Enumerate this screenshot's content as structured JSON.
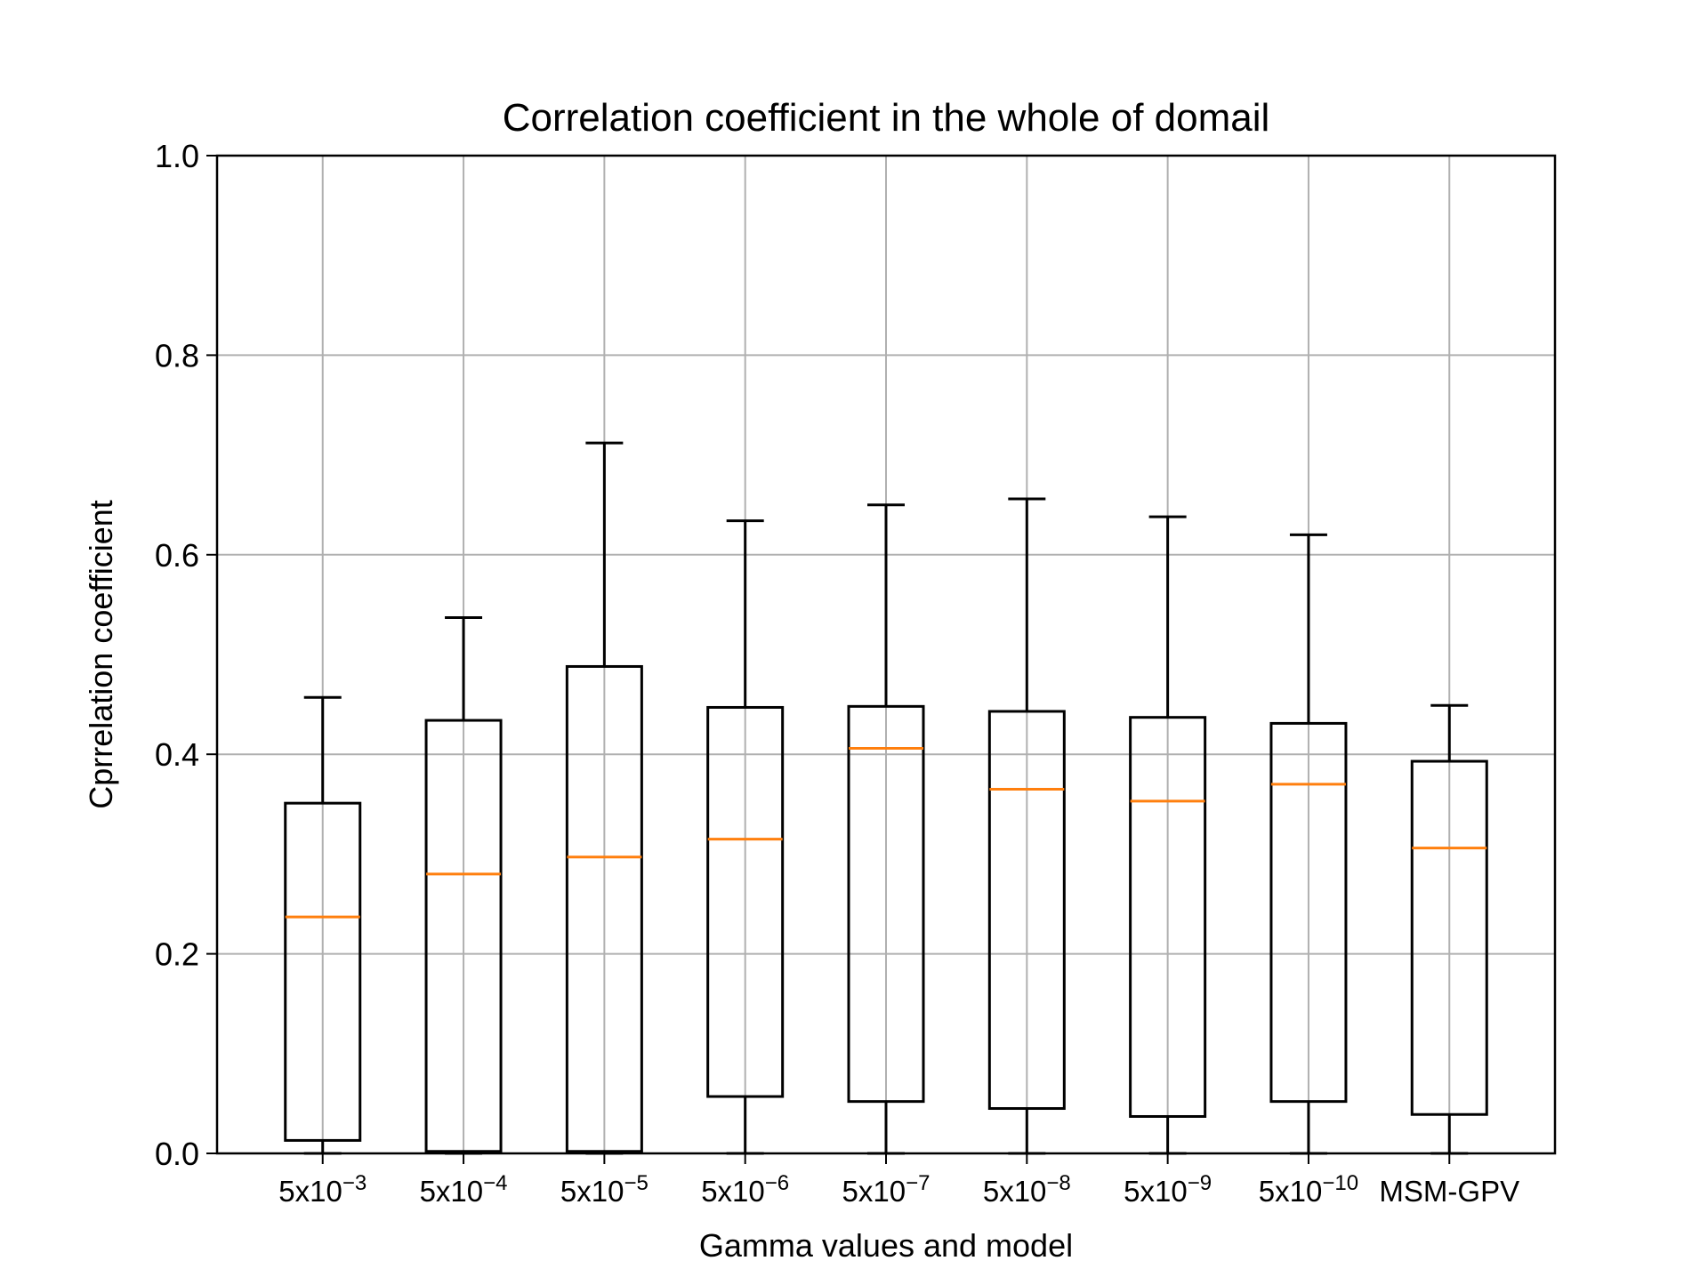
{
  "chart_data": {
    "type": "box",
    "title": "Correlation coefficient in the whole of domail",
    "xlabel": "Gamma values and model",
    "ylabel": "Cprrelation coefficient",
    "ylim": [
      0.0,
      1.0
    ],
    "yticks": [
      "0.0",
      "0.2",
      "0.4",
      "0.6",
      "0.8",
      "1.0"
    ],
    "grid": true,
    "categories": [
      {
        "base": "5x10",
        "sup": "−3"
      },
      {
        "base": "5x10",
        "sup": "−4"
      },
      {
        "base": "5x10",
        "sup": "−5"
      },
      {
        "base": "5x10",
        "sup": "−6"
      },
      {
        "base": "5x10",
        "sup": "−7"
      },
      {
        "base": "5x10",
        "sup": "−8"
      },
      {
        "base": "5x10",
        "sup": "−9"
      },
      {
        "base": "5x10",
        "sup": "−10"
      },
      {
        "base": "MSM-GPV",
        "sup": ""
      }
    ],
    "boxes": [
      {
        "whislo": 0.0,
        "q1": 0.013,
        "median": 0.237,
        "q3": 0.351,
        "whishi": 0.457
      },
      {
        "whislo": 0.0,
        "q1": 0.002,
        "median": 0.28,
        "q3": 0.434,
        "whishi": 0.537
      },
      {
        "whislo": 0.0,
        "q1": 0.002,
        "median": 0.297,
        "q3": 0.488,
        "whishi": 0.712
      },
      {
        "whislo": 0.0,
        "q1": 0.057,
        "median": 0.315,
        "q3": 0.447,
        "whishi": 0.634
      },
      {
        "whislo": 0.0,
        "q1": 0.052,
        "median": 0.406,
        "q3": 0.448,
        "whishi": 0.65
      },
      {
        "whislo": 0.0,
        "q1": 0.045,
        "median": 0.365,
        "q3": 0.443,
        "whishi": 0.656
      },
      {
        "whislo": 0.0,
        "q1": 0.037,
        "median": 0.353,
        "q3": 0.437,
        "whishi": 0.638
      },
      {
        "whislo": 0.0,
        "q1": 0.052,
        "median": 0.37,
        "q3": 0.431,
        "whishi": 0.62
      },
      {
        "whislo": 0.0,
        "q1": 0.039,
        "median": 0.306,
        "q3": 0.393,
        "whishi": 0.449
      }
    ],
    "colors": {
      "box": "#000000",
      "median": "#ff7f0e",
      "grid": "#b0b0b0"
    }
  }
}
